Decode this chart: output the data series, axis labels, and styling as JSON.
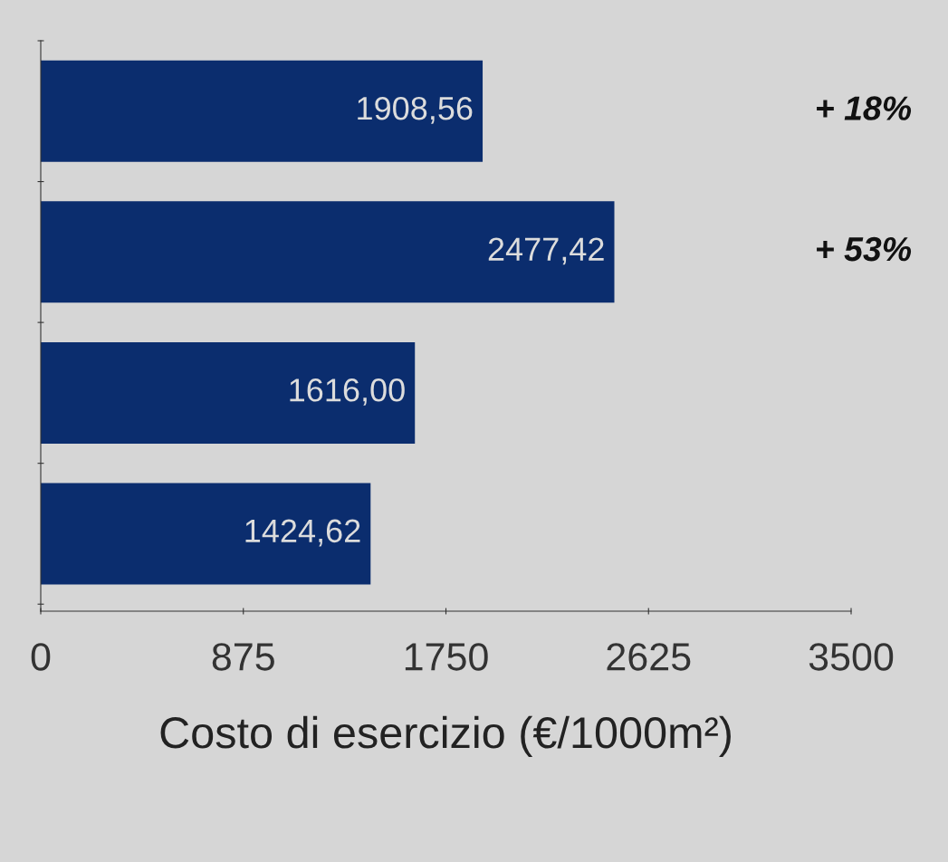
{
  "chart_data": {
    "type": "bar",
    "orientation": "horizontal",
    "xlabel": "Costo di esercizio (€/1000m²)",
    "categories": [
      null,
      null,
      null,
      null
    ],
    "values": [
      1908.56,
      2477.42,
      1616.0,
      1424.62
    ],
    "value_labels": [
      "1908,56",
      "2477,42",
      "1616,00",
      "1424,62"
    ],
    "color": "#0b2d6e",
    "xlim": [
      0,
      3500
    ],
    "xticks": [
      0,
      875,
      1750,
      2625,
      3500
    ],
    "annotations": [
      "+ 18%",
      "+ 53%"
    ],
    "grid": false
  }
}
